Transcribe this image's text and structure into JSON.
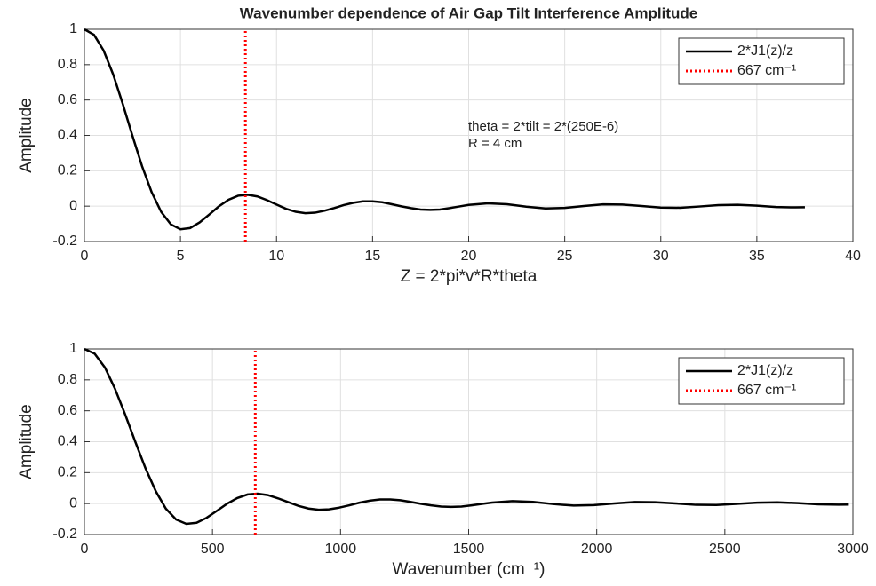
{
  "chart_data": [
    {
      "type": "line",
      "title": "Wavenumber dependence of Air Gap Tilt Interference Amplitude",
      "xlabel": "Z = 2*pi*v*R*theta",
      "ylabel": "Amplitude",
      "annotations": [
        "theta = 2*tilt = 2*(250E-6)",
        "R = 4 cm"
      ],
      "xlim": [
        0,
        40
      ],
      "xticks": [
        0,
        5,
        10,
        15,
        20,
        25,
        30,
        35,
        40
      ],
      "ylim": [
        -0.2,
        1
      ],
      "yticks": [
        -0.2,
        0,
        0.2,
        0.4,
        0.6,
        0.8,
        1
      ],
      "grid": true,
      "legend": "northeast",
      "series": [
        {
          "name": "2*J1(z)/z",
          "color": "#000000",
          "style": "solid",
          "x": [
            0,
            0.5,
            1,
            1.5,
            2,
            2.5,
            3,
            3.5,
            4,
            4.5,
            5,
            5.5,
            6,
            6.5,
            7,
            7.5,
            8,
            8.5,
            9,
            9.5,
            10,
            10.5,
            11,
            11.5,
            12,
            12.5,
            13,
            13.5,
            14,
            14.5,
            15,
            15.5,
            16,
            16.5,
            17,
            17.5,
            18,
            18.5,
            19,
            19.5,
            20,
            21,
            22,
            23,
            24,
            25,
            26,
            27,
            28,
            29,
            30,
            31,
            32,
            33,
            34,
            35,
            36,
            37,
            37.5
          ],
          "values": [
            1,
            0.969,
            0.88,
            0.744,
            0.577,
            0.398,
            0.226,
            0.079,
            -0.033,
            -0.103,
            -0.131,
            -0.124,
            -0.092,
            -0.047,
            -0.001,
            0.036,
            0.059,
            0.064,
            0.055,
            0.034,
            0.009,
            -0.015,
            -0.032,
            -0.04,
            -0.037,
            -0.026,
            -0.011,
            0.006,
            0.019,
            0.027,
            0.027,
            0.022,
            0.011,
            -0.001,
            -0.011,
            -0.019,
            -0.021,
            -0.019,
            -0.011,
            -0.002,
            0.007,
            0.016,
            0.011,
            -0.003,
            -0.013,
            -0.01,
            0.001,
            0.01,
            0.009,
            0.001,
            -0.008,
            -0.009,
            -0.002,
            0.006,
            0.008,
            0.003,
            -0.005,
            -0.007,
            -0.006
          ]
        },
        {
          "name": "667 cm⁻¹",
          "color": "#ff0000",
          "style": "dotted",
          "x": [
            8.38,
            8.38
          ],
          "values": [
            -0.2,
            1
          ]
        }
      ]
    },
    {
      "type": "line",
      "xlabel": "Wavenumber (cm⁻¹)",
      "ylabel": "Amplitude",
      "xlim": [
        0,
        3000
      ],
      "xticks": [
        0,
        500,
        1000,
        1500,
        2000,
        2500,
        3000
      ],
      "ylim": [
        -0.2,
        1
      ],
      "yticks": [
        -0.2,
        0,
        0.2,
        0.4,
        0.6,
        0.8,
        1
      ],
      "grid": true,
      "legend": "northeast",
      "series": [
        {
          "name": "2*J1(z)/z",
          "color": "#000000",
          "style": "solid",
          "x": [
            0,
            40,
            80,
            119,
            159,
            199,
            239,
            279,
            318,
            358,
            398,
            438,
            477,
            517,
            557,
            597,
            637,
            676,
            716,
            756,
            796,
            836,
            875,
            915,
            955,
            995,
            1035,
            1074,
            1114,
            1154,
            1194,
            1233,
            1273,
            1313,
            1353,
            1393,
            1432,
            1472,
            1512,
            1552,
            1592,
            1671,
            1751,
            1830,
            1910,
            1989,
            2069,
            2149,
            2228,
            2308,
            2387,
            2467,
            2546,
            2626,
            2706,
            2785,
            2865,
            2944,
            2984
          ],
          "values": [
            1,
            0.969,
            0.88,
            0.744,
            0.577,
            0.398,
            0.226,
            0.079,
            -0.033,
            -0.103,
            -0.131,
            -0.124,
            -0.092,
            -0.047,
            -0.001,
            0.036,
            0.059,
            0.064,
            0.055,
            0.034,
            0.009,
            -0.015,
            -0.032,
            -0.04,
            -0.037,
            -0.026,
            -0.011,
            0.006,
            0.019,
            0.027,
            0.027,
            0.022,
            0.011,
            -0.001,
            -0.011,
            -0.019,
            -0.021,
            -0.019,
            -0.011,
            -0.002,
            0.007,
            0.016,
            0.011,
            -0.003,
            -0.013,
            -0.01,
            0.001,
            0.01,
            0.009,
            0.001,
            -0.008,
            -0.009,
            -0.002,
            0.006,
            0.008,
            0.003,
            -0.005,
            -0.007,
            -0.006
          ]
        },
        {
          "name": "667 cm⁻¹",
          "color": "#ff0000",
          "style": "dotted",
          "x": [
            667,
            667
          ],
          "values": [
            -0.2,
            1
          ]
        }
      ]
    }
  ]
}
